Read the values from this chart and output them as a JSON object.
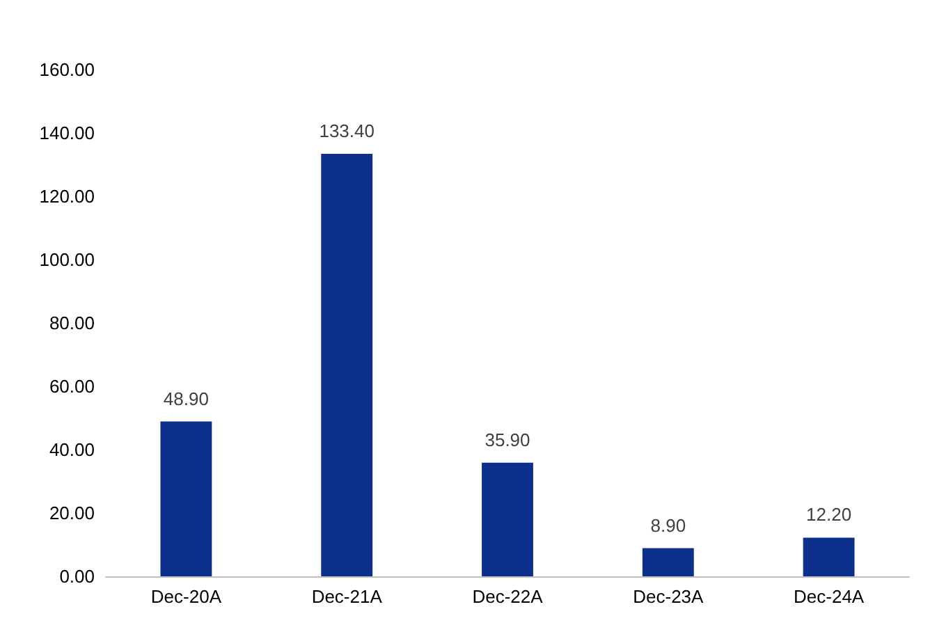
{
  "chart_data": {
    "type": "bar",
    "categories": [
      "Dec-20A",
      "Dec-21A",
      "Dec-22A",
      "Dec-23A",
      "Dec-24A"
    ],
    "values": [
      48.9,
      133.4,
      35.9,
      8.9,
      12.2
    ],
    "value_labels": [
      "48.90",
      "133.40",
      "35.90",
      "8.90",
      "12.20"
    ],
    "color": "#0c308c",
    "ylim": [
      0,
      160
    ],
    "yticks": [
      {
        "value": 0,
        "label": "0.00"
      },
      {
        "value": 20,
        "label": "20.00"
      },
      {
        "value": 40,
        "label": "40.00"
      },
      {
        "value": 60,
        "label": "60.00"
      },
      {
        "value": 80,
        "label": "80.00"
      },
      {
        "value": 100,
        "label": "100.00"
      },
      {
        "value": 120,
        "label": "120.00"
      },
      {
        "value": 140,
        "label": "140.00"
      },
      {
        "value": 160,
        "label": "160.00"
      }
    ],
    "grid": false
  }
}
